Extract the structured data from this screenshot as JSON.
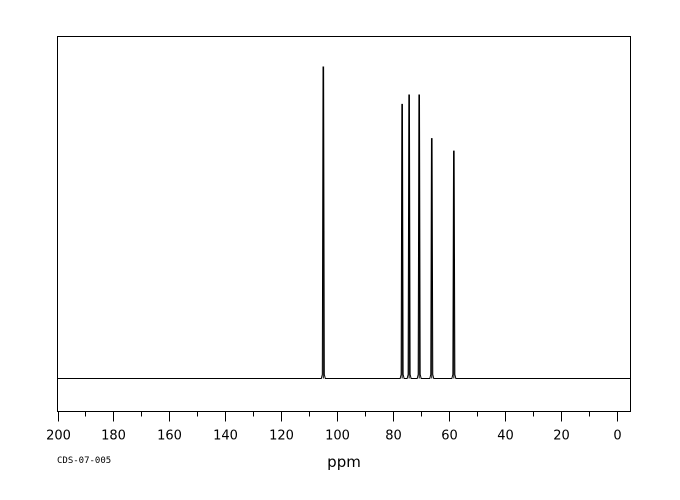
{
  "chart_data": {
    "type": "line",
    "title": "",
    "xlabel": "ppm",
    "ylabel": "",
    "xlim": [
      200,
      -5
    ],
    "x_reversed": true,
    "ylim": [
      -0.12,
      1.0
    ],
    "grid": false,
    "legend": "none",
    "ticks": {
      "major": [
        200,
        180,
        160,
        140,
        120,
        100,
        80,
        60,
        40,
        20,
        0
      ],
      "major_labels": [
        "200",
        "180",
        "160",
        "140",
        "120",
        "100",
        "80",
        "60",
        "40",
        "20",
        "0"
      ],
      "minor": [
        190,
        170,
        150,
        130,
        110,
        90,
        70,
        50,
        30,
        10
      ]
    },
    "baseline": 0,
    "peaks": [
      {
        "ppm": 104.9,
        "intensity": 1.0
      },
      {
        "ppm": 76.7,
        "intensity": 0.88
      },
      {
        "ppm": 74.2,
        "intensity": 0.91
      },
      {
        "ppm": 70.6,
        "intensity": 0.91
      },
      {
        "ppm": 66.1,
        "intensity": 0.77
      },
      {
        "ppm": 58.2,
        "intensity": 0.73
      }
    ],
    "line_color": "#000000"
  },
  "footer": {
    "code": "CDS-07-005"
  }
}
